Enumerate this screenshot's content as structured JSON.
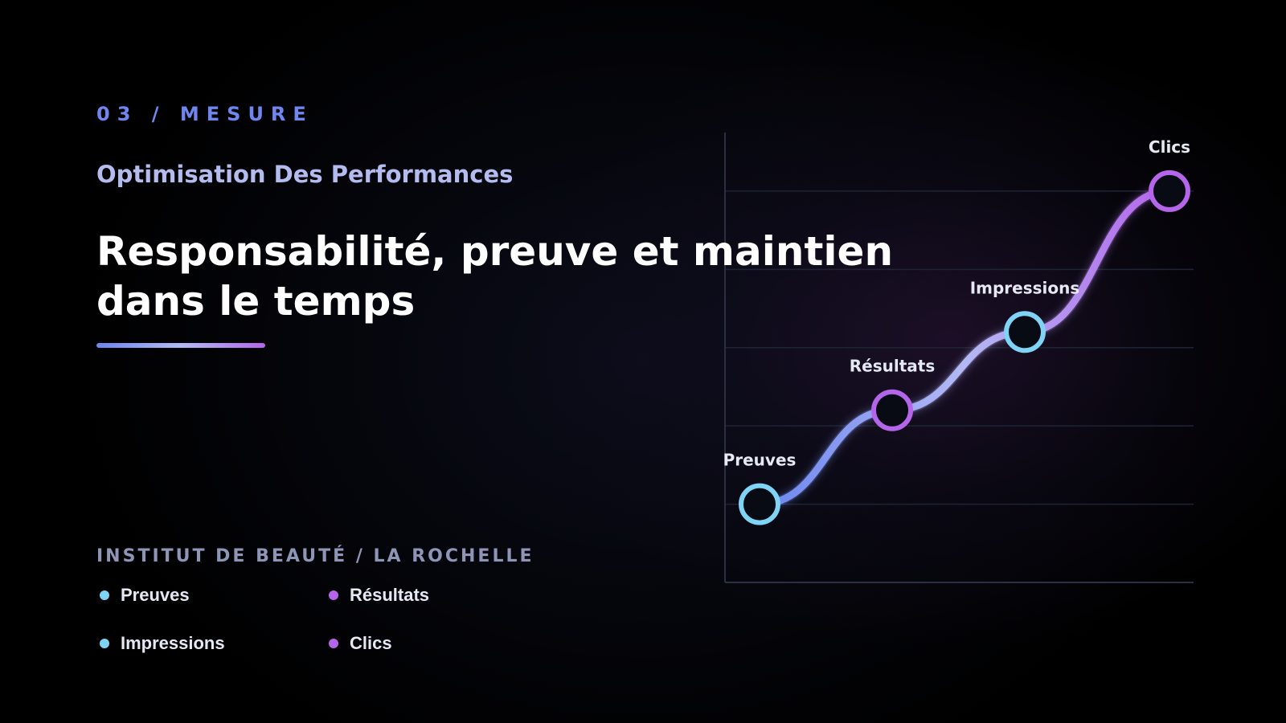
{
  "header": {
    "eyebrow": "03 / MESURE",
    "subtitle": "Optimisation Des Performances",
    "title_line1": "Responsabilité, preuve et maintien",
    "title_line2": "dans le temps"
  },
  "client": "INSTITUT DE BEAUTÉ / LA ROCHELLE",
  "legend": [
    {
      "label": "Preuves",
      "color": "#7fd3f5"
    },
    {
      "label": "Résultats",
      "color": "#b565ea"
    },
    {
      "label": "Impressions",
      "color": "#7fd3f5"
    },
    {
      "label": "Clics",
      "color": "#b565ea"
    }
  ],
  "colors": {
    "accent_blue": "#6b86f0",
    "accent_lavender": "#b3b9f5",
    "accent_purple": "#b565ea",
    "node_cyan": "#7fd3f5",
    "background": "#000000"
  },
  "chart_data": {
    "type": "line",
    "categories": [
      "Preuves",
      "Résultats",
      "Impressions",
      "Clics"
    ],
    "series": [
      {
        "values": [
          1,
          2.2,
          3.2,
          5.0
        ]
      }
    ],
    "ylim": [
      0,
      5.8
    ],
    "grid": true,
    "point_colors": [
      "#7fd3f5",
      "#b565ea",
      "#7fd3f5",
      "#b565ea"
    ]
  }
}
